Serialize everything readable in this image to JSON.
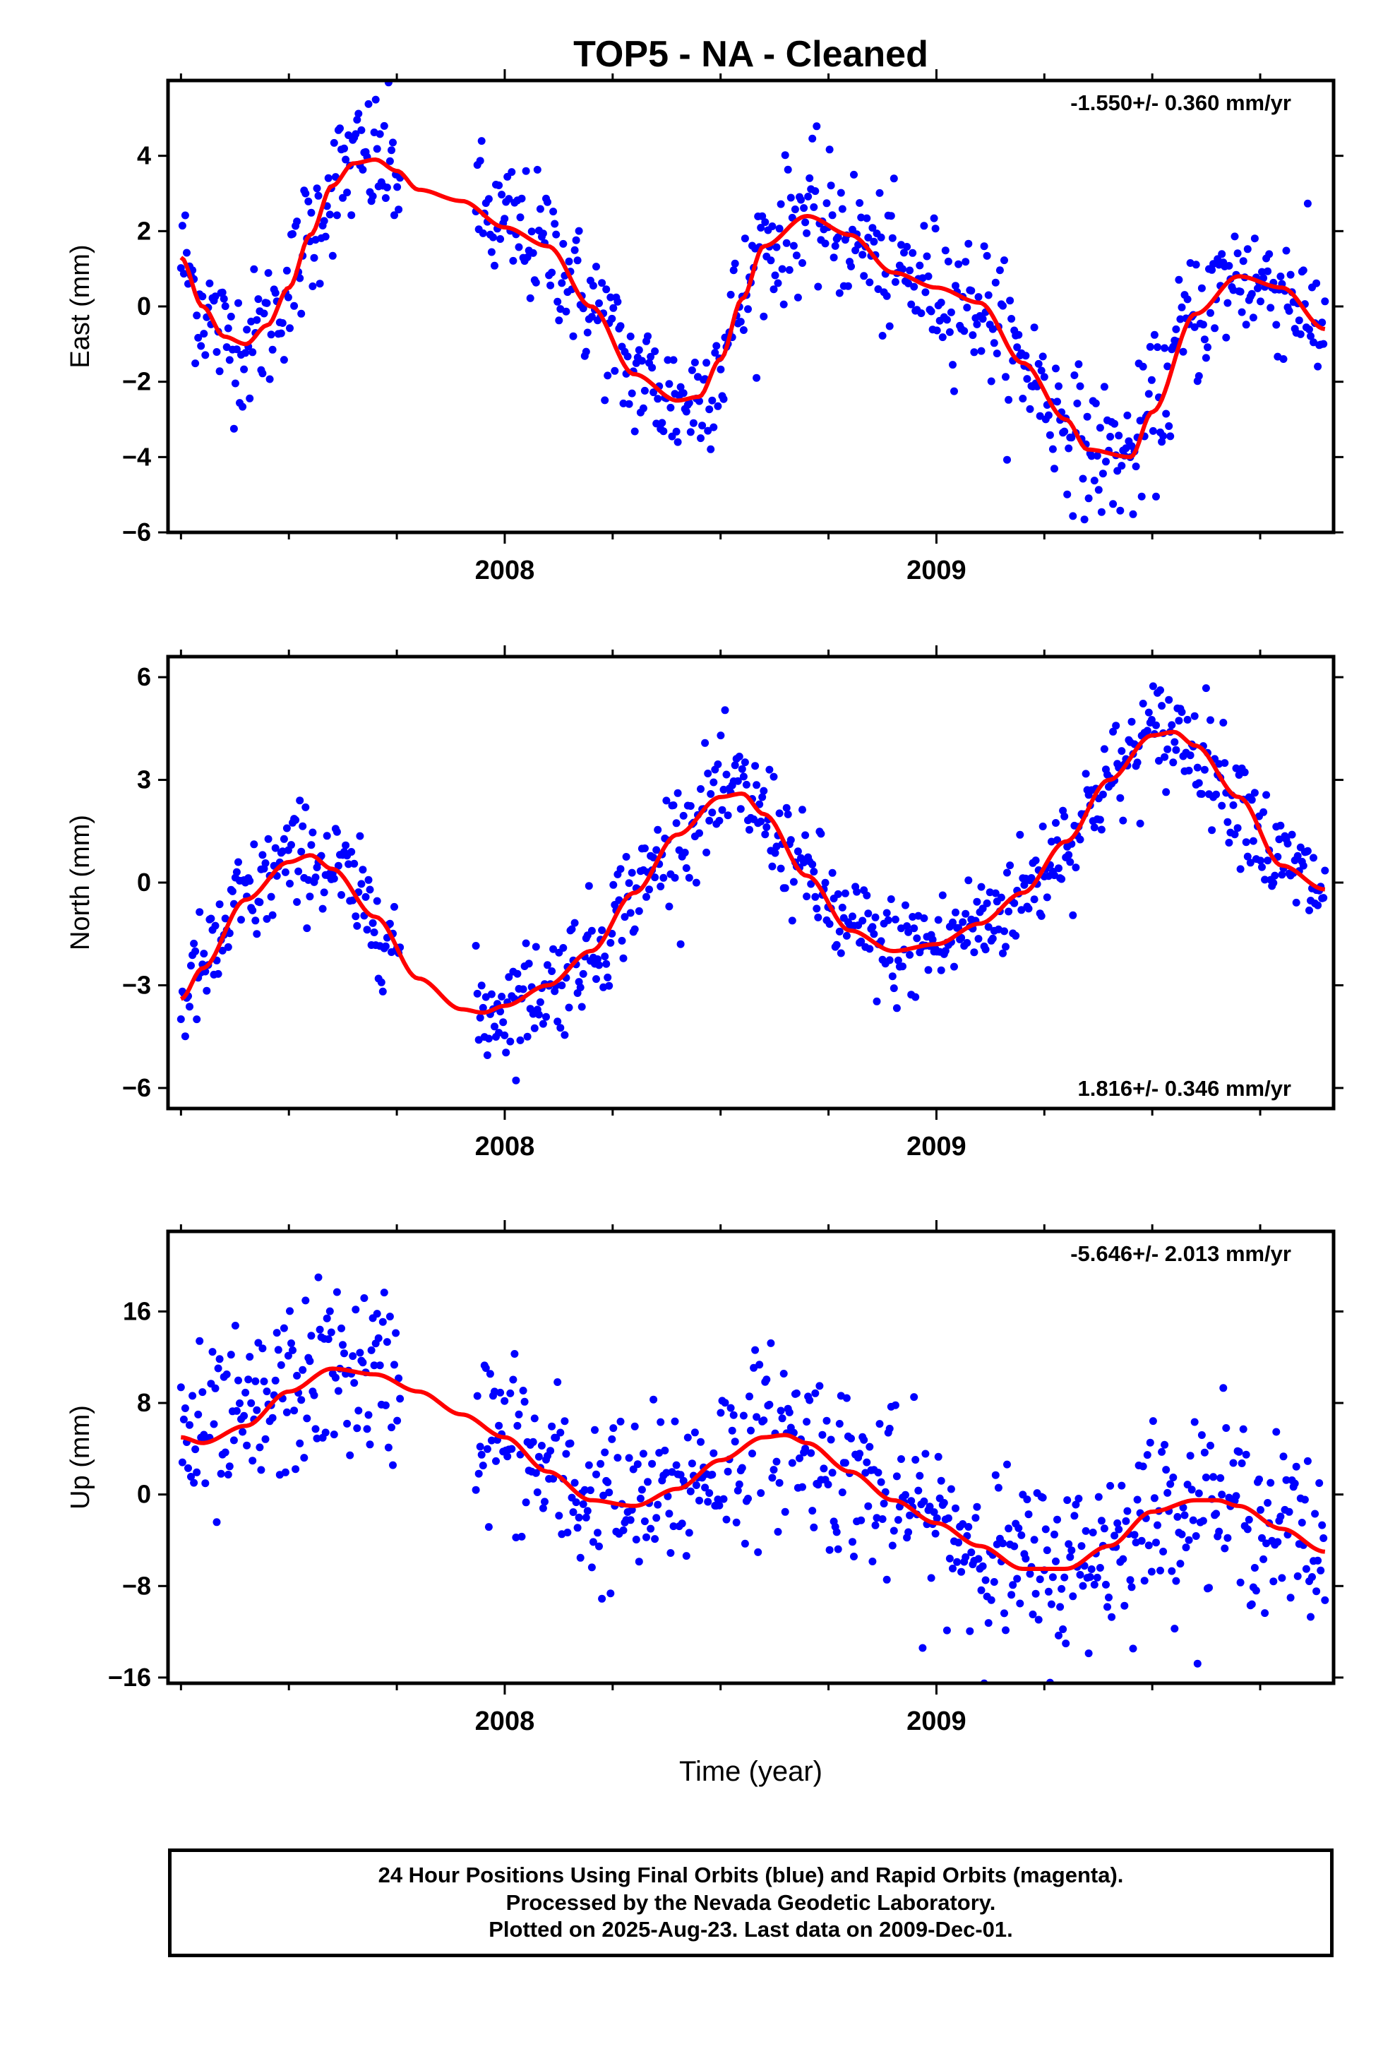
{
  "colors": {
    "points": "#0000ff",
    "fit": "#ff0000",
    "axes": "#000000",
    "background": "#ffffff"
  },
  "chart_data": [
    {
      "type": "scatter",
      "title": "TOP5  - NA - Cleaned",
      "ylabel": "East (mm)",
      "xlabel": "",
      "rate_label": "-1.550+/- 0.360 mm/yr",
      "rate_position": "top-right",
      "xlim": [
        2007.22,
        2009.92
      ],
      "ylim": [
        -6,
        6
      ],
      "yticks": [
        -6,
        -4,
        -2,
        0,
        2,
        4
      ],
      "xticks_major": [
        2008,
        2009
      ],
      "xtick_labels": [
        "2008",
        "2009"
      ],
      "data_range": [
        2007.25,
        2009.9
      ],
      "fit_knots": {
        "x": [
          2007.25,
          2007.3,
          2007.35,
          2007.4,
          2007.45,
          2007.5,
          2007.55,
          2007.6,
          2007.65,
          2007.7,
          2007.75,
          2007.8,
          2007.9,
          2008.0,
          2008.1,
          2008.2,
          2008.3,
          2008.4,
          2008.45,
          2008.5,
          2008.55,
          2008.6,
          2008.7,
          2008.8,
          2008.9,
          2009.0,
          2009.1,
          2009.2,
          2009.3,
          2009.35,
          2009.45,
          2009.5,
          2009.6,
          2009.7,
          2009.8,
          2009.9
        ],
        "y": [
          1.3,
          0.0,
          -0.8,
          -1.0,
          -0.5,
          0.5,
          1.9,
          3.2,
          3.8,
          3.9,
          3.6,
          3.1,
          2.8,
          2.1,
          1.6,
          0.0,
          -1.8,
          -2.5,
          -2.4,
          -1.4,
          0.2,
          1.6,
          2.4,
          1.9,
          0.9,
          0.5,
          0.1,
          -1.5,
          -3.0,
          -3.8,
          -4.0,
          -2.8,
          -0.2,
          0.8,
          0.5,
          -0.6
        ]
      },
      "scatter_noise_mm": 0.9,
      "gaps": [
        [
          2007.76,
          2007.93
        ]
      ]
    },
    {
      "type": "scatter",
      "title": "",
      "ylabel": "North (mm)",
      "xlabel": "",
      "rate_label": "1.816+/- 0.346 mm/yr",
      "rate_position": "bottom-right",
      "xlim": [
        2007.22,
        2009.92
      ],
      "ylim": [
        -6.6,
        6.6
      ],
      "yticks": [
        -6,
        -3,
        0,
        3,
        6
      ],
      "xticks_major": [
        2008,
        2009
      ],
      "xtick_labels": [
        "2008",
        "2009"
      ],
      "data_range": [
        2007.25,
        2009.9
      ],
      "fit_knots": {
        "x": [
          2007.25,
          2007.3,
          2007.4,
          2007.5,
          2007.55,
          2007.6,
          2007.7,
          2007.8,
          2007.9,
          2007.95,
          2008.0,
          2008.1,
          2008.2,
          2008.3,
          2008.4,
          2008.5,
          2008.55,
          2008.6,
          2008.7,
          2008.8,
          2008.9,
          2009.0,
          2009.1,
          2009.2,
          2009.3,
          2009.4,
          2009.5,
          2009.55,
          2009.6,
          2009.7,
          2009.8,
          2009.9
        ],
        "y": [
          -3.4,
          -2.5,
          -0.5,
          0.6,
          0.8,
          0.4,
          -1.0,
          -2.8,
          -3.7,
          -3.8,
          -3.6,
          -3.0,
          -2.0,
          -0.3,
          1.4,
          2.5,
          2.6,
          2.0,
          0.2,
          -1.4,
          -2.0,
          -1.8,
          -1.2,
          -0.3,
          1.2,
          3.0,
          4.3,
          4.4,
          4.0,
          2.5,
          0.5,
          -0.2
        ]
      },
      "scatter_noise_mm": 0.8,
      "gaps": [
        [
          2007.76,
          2007.93
        ]
      ]
    },
    {
      "type": "scatter",
      "title": "",
      "ylabel": "Up (mm)",
      "xlabel": "Time (year)",
      "rate_label": "-5.646+/- 2.013 mm/yr",
      "rate_position": "top-right",
      "xlim": [
        2007.22,
        2009.92
      ],
      "ylim": [
        -16.5,
        23
      ],
      "yticks": [
        -16,
        -8,
        0,
        8,
        16
      ],
      "xticks_major": [
        2008,
        2009
      ],
      "xtick_labels": [
        "2008",
        "2009"
      ],
      "data_range": [
        2007.25,
        2009.9
      ],
      "fit_knots": {
        "x": [
          2007.25,
          2007.3,
          2007.4,
          2007.5,
          2007.6,
          2007.7,
          2007.8,
          2007.9,
          2008.0,
          2008.1,
          2008.2,
          2008.3,
          2008.4,
          2008.5,
          2008.6,
          2008.65,
          2008.7,
          2008.8,
          2008.9,
          2009.0,
          2009.1,
          2009.2,
          2009.3,
          2009.4,
          2009.5,
          2009.6,
          2009.65,
          2009.7,
          2009.8,
          2009.9
        ],
        "y": [
          5.0,
          4.5,
          6.0,
          9.0,
          11.0,
          10.5,
          9.0,
          7.0,
          5.0,
          2.0,
          -0.5,
          -1.0,
          0.5,
          3.0,
          5.0,
          5.2,
          4.5,
          2.0,
          -0.5,
          -2.5,
          -4.5,
          -6.5,
          -6.5,
          -4.5,
          -1.5,
          -0.5,
          -0.5,
          -1.0,
          -3.0,
          -5.0
        ]
      },
      "scatter_noise_mm": 3.8,
      "gaps": [
        [
          2007.76,
          2007.93
        ]
      ]
    }
  ],
  "footer": {
    "line1": "24 Hour Positions Using Final Orbits (blue) and Rapid Orbits (magenta).",
    "line2": "Processed by the Nevada Geodetic Laboratory.",
    "line3": "Plotted on 2025-Aug-23. Last data on 2009-Dec-01."
  }
}
